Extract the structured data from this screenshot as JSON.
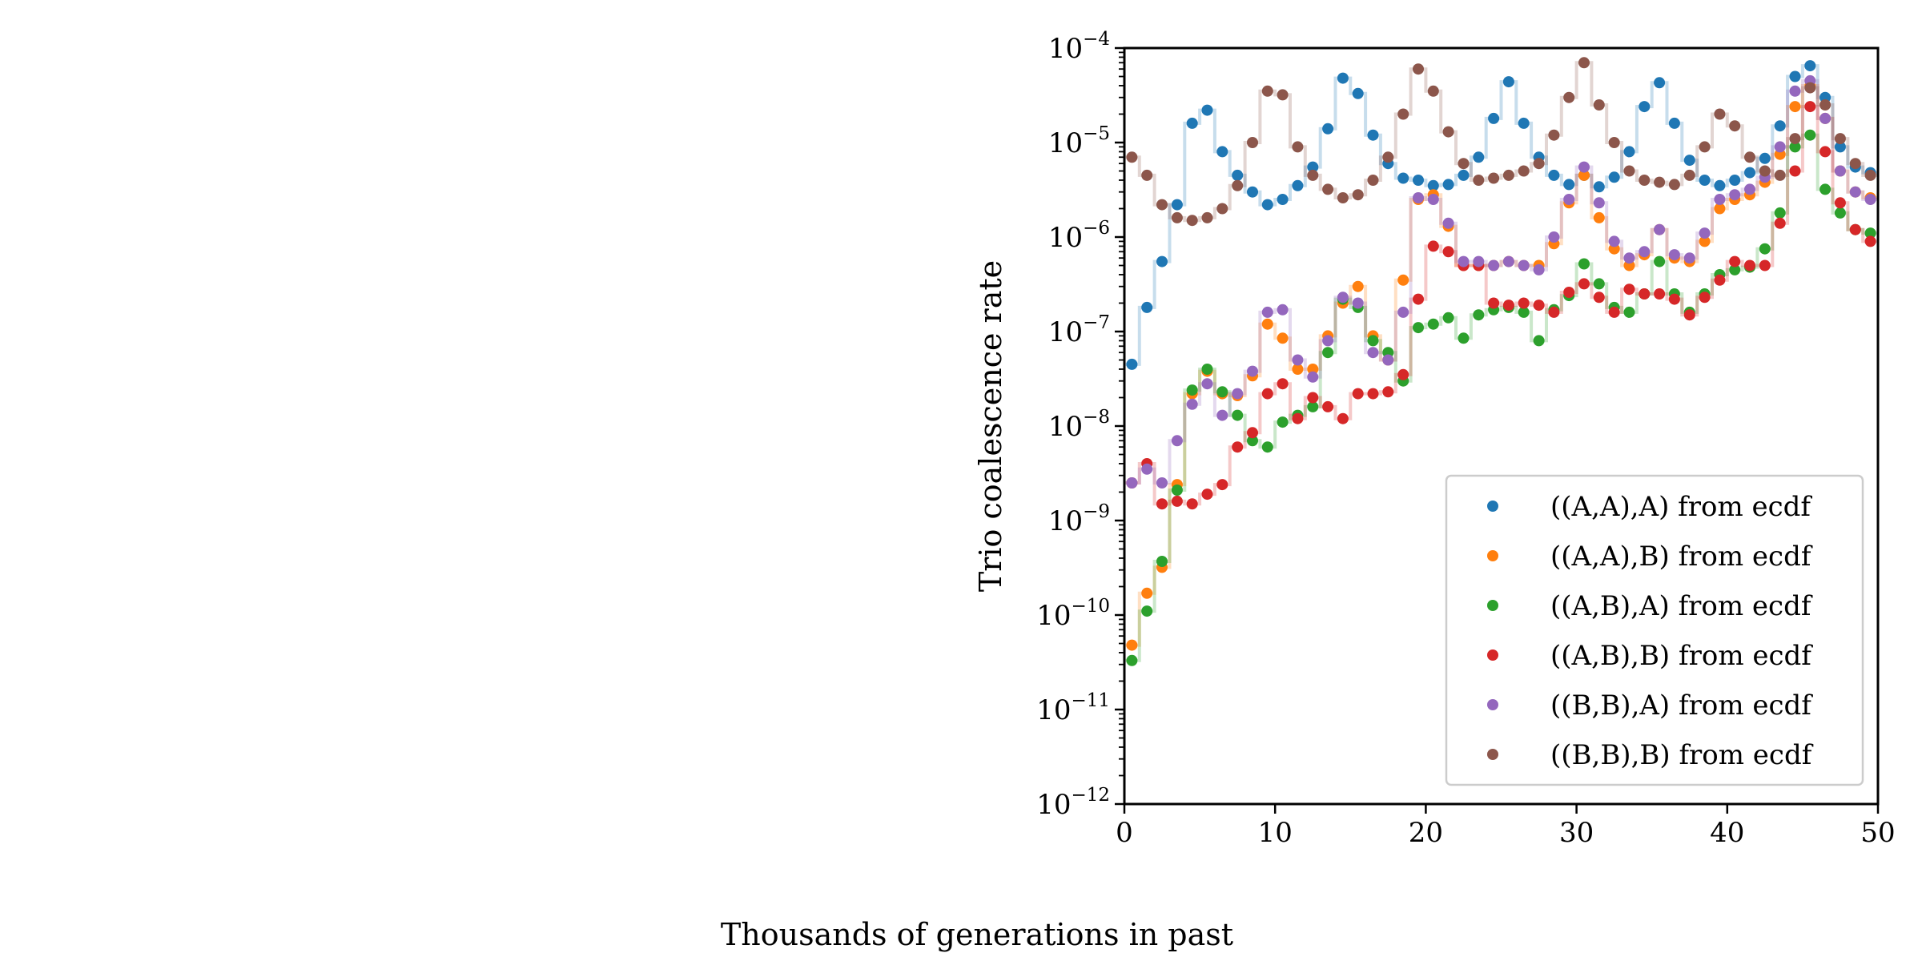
{
  "chart_data": {
    "type": "scatter",
    "xlabel": "Thousands of generations in past",
    "ylabel": "Trio coalescence rate",
    "xlim": [
      0,
      50
    ],
    "ylim": [
      1e-12,
      0.0001
    ],
    "yscale": "log",
    "xticks": [
      "0",
      "10",
      "20",
      "30",
      "40",
      "50"
    ],
    "yticks": [
      {
        "base": "10",
        "exp": "−4"
      },
      {
        "base": "10",
        "exp": "−5"
      },
      {
        "base": "10",
        "exp": "−6"
      },
      {
        "base": "10",
        "exp": "−7"
      },
      {
        "base": "10",
        "exp": "−8"
      },
      {
        "base": "10",
        "exp": "−9"
      },
      {
        "base": "10",
        "exp": "−10"
      },
      {
        "base": "10",
        "exp": "−11"
      },
      {
        "base": "10",
        "exp": "−12"
      }
    ],
    "grid": false,
    "legend_position": "lower-right",
    "x": [
      0.5,
      1.5,
      2.5,
      3.5,
      4.5,
      5.5,
      6.5,
      7.5,
      8.5,
      9.5,
      10.5,
      11.5,
      12.5,
      13.5,
      14.5,
      15.5,
      16.5,
      17.5,
      18.5,
      19.5,
      20.5,
      21.5,
      22.5,
      23.5,
      24.5,
      25.5,
      26.5,
      27.5,
      28.5,
      29.5,
      30.5,
      31.5,
      32.5,
      33.5,
      34.5,
      35.5,
      36.5,
      37.5,
      38.5,
      39.5,
      40.5,
      41.5,
      42.5,
      43.5,
      44.5,
      45.5,
      46.5,
      47.5,
      48.5,
      49.5
    ],
    "series": [
      {
        "name": "((A,A),A) from ecdf",
        "color": "#1f77b4",
        "values": [
          4.5e-08,
          1.8e-07,
          5.5e-07,
          2.2e-06,
          1.6e-05,
          2.2e-05,
          8e-06,
          4.5e-06,
          3e-06,
          2.2e-06,
          2.5e-06,
          3.5e-06,
          5.5e-06,
          1.4e-05,
          4.8e-05,
          3.3e-05,
          1.2e-05,
          6e-06,
          4.2e-06,
          4e-06,
          3.5e-06,
          3.6e-06,
          4.5e-06,
          7e-06,
          1.8e-05,
          4.4e-05,
          1.6e-05,
          7e-06,
          4.5e-06,
          3.6e-06,
          4.5e-06,
          3.4e-06,
          4.3e-06,
          8e-06,
          2.4e-05,
          4.3e-05,
          1.6e-05,
          6.5e-06,
          4e-06,
          3.5e-06,
          4e-06,
          4.8e-06,
          6.8e-06,
          1.5e-05,
          5e-05,
          6.5e-05,
          3e-05,
          9e-06,
          5.5e-06,
          4.8e-06
        ]
      },
      {
        "name": "((A,A),B) from ecdf",
        "color": "#ff7f0e",
        "values": [
          4.8e-11,
          1.7e-10,
          3.2e-10,
          2.4e-09,
          2.2e-08,
          3.8e-08,
          2.2e-08,
          2.1e-08,
          3.4e-08,
          1.2e-07,
          8.5e-08,
          4e-08,
          4e-08,
          9e-08,
          2e-07,
          3e-07,
          9e-08,
          5e-08,
          3.5e-07,
          2.5e-06,
          2.8e-06,
          1.3e-06,
          5e-07,
          5e-07,
          5e-07,
          5.5e-07,
          5e-07,
          5e-07,
          8.5e-07,
          2.3e-06,
          4.5e-06,
          1.6e-06,
          7.5e-07,
          5e-07,
          6.5e-07,
          1.2e-06,
          6e-07,
          5.5e-07,
          9e-07,
          2e-06,
          2.5e-06,
          2.8e-06,
          3.8e-06,
          7.5e-06,
          2.4e-05,
          4e-05,
          1.8e-05,
          5e-06,
          3e-06,
          2.6e-06
        ]
      },
      {
        "name": "((A,B),A) from ecdf",
        "color": "#2ca02c",
        "values": [
          3.3e-11,
          1.1e-10,
          3.7e-10,
          2.1e-09,
          2.4e-08,
          4e-08,
          2.3e-08,
          1.3e-08,
          7e-09,
          6e-09,
          1.1e-08,
          1.3e-08,
          1.6e-08,
          6e-08,
          2.2e-07,
          1.8e-07,
          8e-08,
          6e-08,
          3e-08,
          1.1e-07,
          1.2e-07,
          1.4e-07,
          8.5e-08,
          1.5e-07,
          1.7e-07,
          1.8e-07,
          1.6e-07,
          8e-08,
          1.7e-07,
          2.4e-07,
          5.2e-07,
          3.2e-07,
          1.8e-07,
          1.6e-07,
          2.5e-07,
          5.5e-07,
          2.5e-07,
          1.6e-07,
          2.5e-07,
          4e-07,
          4.5e-07,
          4.8e-07,
          7.5e-07,
          1.8e-06,
          9e-06,
          1.2e-05,
          3.2e-06,
          1.8e-06,
          1.2e-06,
          1.1e-06
        ]
      },
      {
        "name": "((A,B),B) from ecdf",
        "color": "#d62728",
        "values": [
          2.5e-09,
          4e-09,
          1.5e-09,
          1.6e-09,
          1.5e-09,
          1.9e-09,
          2.4e-09,
          6e-09,
          8.5e-09,
          2.2e-08,
          2.8e-08,
          1.2e-08,
          2e-08,
          1.6e-08,
          1.2e-08,
          2.2e-08,
          2.2e-08,
          2.3e-08,
          3.5e-08,
          2.2e-07,
          8e-07,
          7e-07,
          5e-07,
          5e-07,
          2e-07,
          1.9e-07,
          2e-07,
          1.9e-07,
          1.6e-07,
          2.6e-07,
          3.2e-07,
          2.3e-07,
          1.6e-07,
          2.8e-07,
          2.5e-07,
          2.5e-07,
          2.2e-07,
          1.5e-07,
          2.3e-07,
          3.5e-07,
          5.5e-07,
          5e-07,
          5e-07,
          1.4e-06,
          5e-06,
          2.4e-05,
          8e-06,
          2.3e-06,
          1.2e-06,
          9e-07
        ]
      },
      {
        "name": "((B,B),A) from ecdf",
        "color": "#9467bd",
        "values": [
          2.5e-09,
          3.5e-09,
          2.5e-09,
          7e-09,
          1.7e-08,
          2.8e-08,
          1.3e-08,
          2.2e-08,
          3.8e-08,
          1.6e-07,
          1.7e-07,
          5e-08,
          3.3e-08,
          8e-08,
          2.3e-07,
          2e-07,
          6e-08,
          5e-08,
          1.6e-07,
          2.6e-06,
          2.5e-06,
          1.4e-06,
          5.5e-07,
          5.5e-07,
          5e-07,
          5.5e-07,
          5e-07,
          4.5e-07,
          1e-06,
          2.5e-06,
          5.5e-06,
          2.3e-06,
          9e-07,
          6e-07,
          7e-07,
          1.2e-06,
          6.5e-07,
          6e-07,
          1.1e-06,
          2.5e-06,
          2.8e-06,
          3.2e-06,
          4.3e-06,
          9e-06,
          3.5e-05,
          4.5e-05,
          1.8e-05,
          5e-06,
          3e-06,
          2.5e-06
        ]
      },
      {
        "name": "((B,B),B) from ecdf",
        "color": "#8c564b",
        "values": [
          7e-06,
          4.5e-06,
          2.2e-06,
          1.6e-06,
          1.5e-06,
          1.6e-06,
          2e-06,
          3.5e-06,
          1e-05,
          3.5e-05,
          3.2e-05,
          9e-06,
          4.5e-06,
          3.2e-06,
          2.6e-06,
          2.8e-06,
          4e-06,
          7e-06,
          2e-05,
          6e-05,
          3.5e-05,
          1.3e-05,
          6e-06,
          4e-06,
          4.2e-06,
          4.5e-06,
          5e-06,
          6e-06,
          1.2e-05,
          3e-05,
          7e-05,
          2.5e-05,
          1e-05,
          5e-06,
          4e-06,
          3.8e-06,
          3.6e-06,
          4.5e-06,
          9e-06,
          2e-05,
          1.5e-05,
          7e-06,
          5e-06,
          4.5e-06,
          1.1e-05,
          3.8e-05,
          2.5e-05,
          1.1e-05,
          6e-06,
          4.5e-06
        ]
      }
    ]
  }
}
